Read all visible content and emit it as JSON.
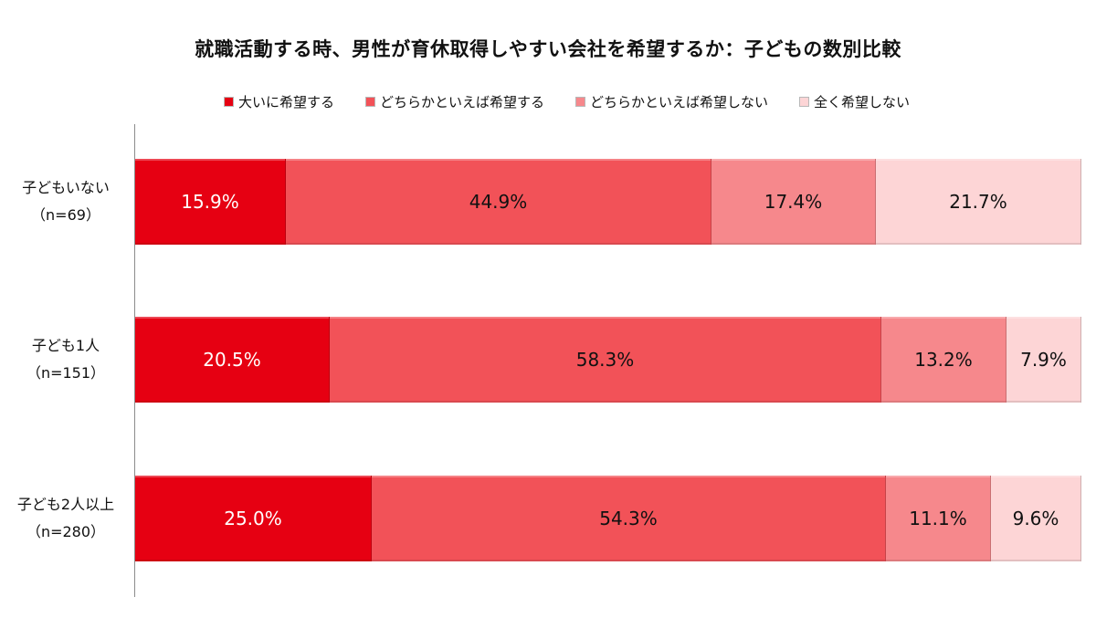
{
  "chart_data": {
    "type": "bar",
    "orientation": "horizontal",
    "stacked": true,
    "title": "就職活動する時、男性が育休取得しやすい会社を希望するか：子どもの数別比較",
    "categories": [
      {
        "name": "子どもいない",
        "n": "（n=69）"
      },
      {
        "name": "子ども1人",
        "n": "（n=151）"
      },
      {
        "name": "子ども2人以上",
        "n": "（n=280）"
      }
    ],
    "series": [
      {
        "name": "大いに希望する",
        "color": "#e60012",
        "label_color": "#ffffff",
        "values": [
          15.9,
          20.5,
          25.0
        ]
      },
      {
        "name": "どちらかといえば希望する",
        "color": "#f25258",
        "label_color": "#111111",
        "values": [
          44.9,
          58.3,
          54.3
        ]
      },
      {
        "name": "どちらかといえば希望しない",
        "color": "#f6888c",
        "label_color": "#111111",
        "values": [
          17.4,
          13.2,
          11.1
        ]
      },
      {
        "name": "全く希望しない",
        "color": "#fdd5d6",
        "label_color": "#111111",
        "values": [
          21.7,
          7.9,
          9.6
        ]
      }
    ],
    "value_suffix": "%",
    "xlim": [
      0,
      100
    ],
    "grid": false,
    "legend_position": "top"
  }
}
